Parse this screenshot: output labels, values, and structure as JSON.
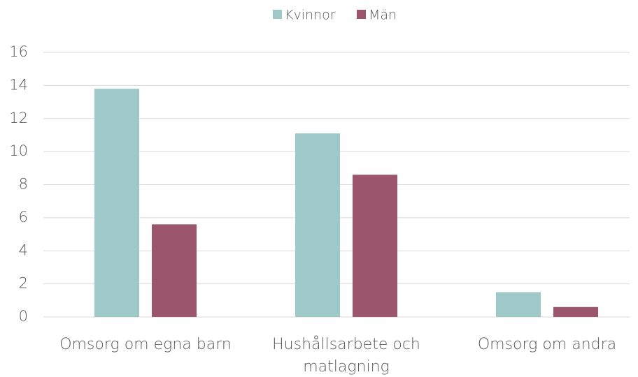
{
  "chart_data": {
    "type": "bar",
    "categories": [
      "Omsorg om egna barn",
      "Hushållsarbete och matlagning",
      "Omsorg om andra"
    ],
    "series": [
      {
        "name": "Kvinnor",
        "color": "#9fc9c8",
        "values": [
          13.8,
          11.1,
          1.5
        ]
      },
      {
        "name": "Män",
        "color": "#9b566d",
        "values": [
          5.6,
          8.6,
          0.6
        ]
      }
    ],
    "ylim": [
      0,
      16
    ],
    "yticks": [
      0,
      2,
      4,
      6,
      8,
      10,
      12,
      14,
      16
    ],
    "grid": true,
    "legend": "top"
  }
}
